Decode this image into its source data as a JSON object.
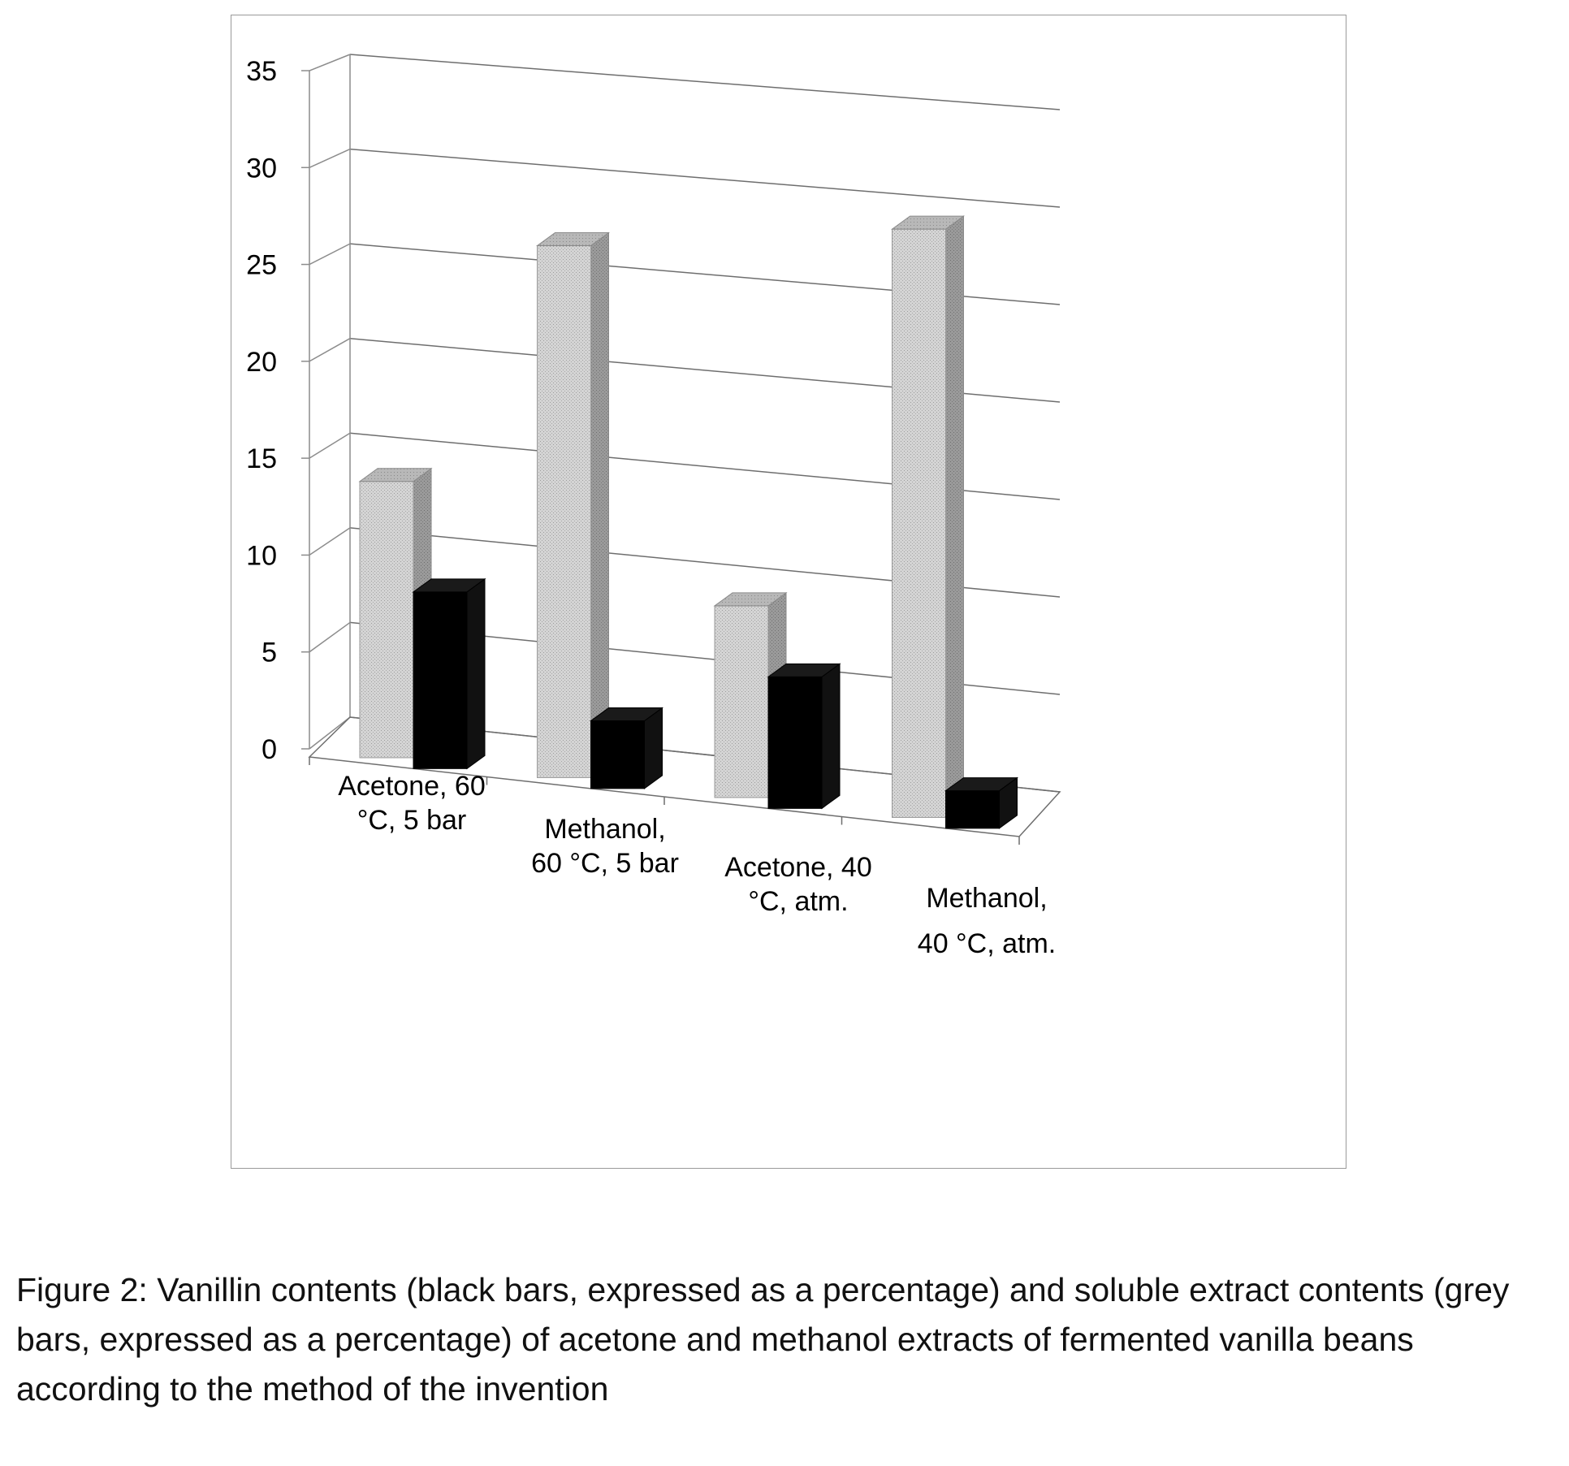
{
  "chart_data": {
    "type": "bar",
    "style": "3d-clustered-columns",
    "categories": [
      [
        "Acetone, 60",
        "°C, 5 bar"
      ],
      [
        "Methanol,",
        "60 °C, 5 bar"
      ],
      [
        "Acetone, 40",
        "°C, atm."
      ],
      [
        "Methanol,",
        "40 °C, atm."
      ]
    ],
    "series": [
      {
        "key": "grey",
        "color": "#c8c8c8",
        "values": [
          14.7,
          28.3,
          10.2,
          31.3
        ]
      },
      {
        "key": "black",
        "color": "#000000",
        "values": [
          9.4,
          3.6,
          7.0,
          2.0
        ]
      }
    ],
    "yticks": [
      0,
      5,
      10,
      15,
      20,
      25,
      30,
      35
    ],
    "ylim": [
      0,
      35
    ],
    "grid": true,
    "legend": "none"
  },
  "caption": "Figure 2: Vanillin contents (black bars, expressed as a percentage) and soluble extract contents (grey bars, expressed as a percentage) of acetone and methanol extracts of fermented vanilla beans according to the method of the invention"
}
